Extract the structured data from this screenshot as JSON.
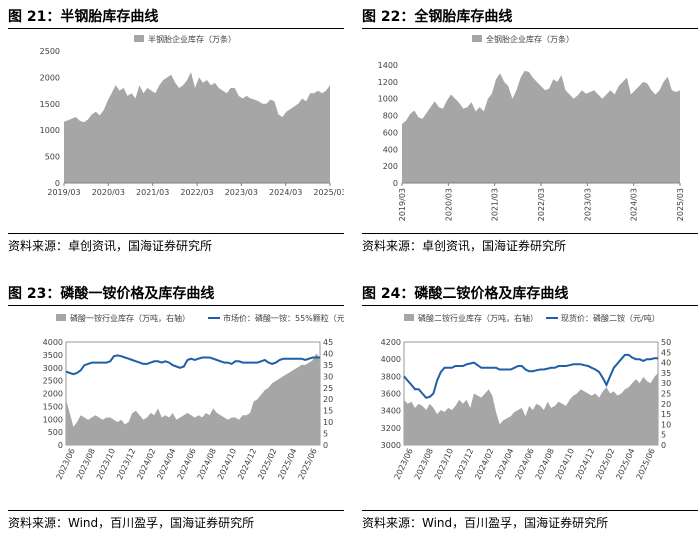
{
  "colors": {
    "area": "#a6a6a6",
    "line": "#1f5fa8",
    "axis": "#808080",
    "text": "#404040"
  },
  "panels": [
    {
      "title": "图 21：半钢胎库存曲线",
      "source": "资料来源：卓创资讯，国海证券研究所"
    },
    {
      "title": "图 22：全钢胎库存曲线",
      "source": "资料来源：卓创资讯，国海证券研究所"
    },
    {
      "title": "图 23：磷酸一铵价格及库存曲线",
      "source": "资料来源：Wind，百川盈孚，国海证券研究所"
    },
    {
      "title": "图 24：磷酸二铵价格及库存曲线",
      "source": "资料来源：Wind，百川盈孚，国海证券研究所"
    }
  ],
  "chart_data": [
    {
      "type": "area",
      "legend": [
        "半钢胎企业库存（万条）"
      ],
      "x_ticks": [
        "2019/03",
        "2020/03",
        "2021/03",
        "2022/03",
        "2023/03",
        "2024/03",
        "2025/03"
      ],
      "ylim": [
        0,
        2500
      ],
      "y_ticks": [
        0,
        500,
        1000,
        1500,
        2000,
        2500
      ],
      "series": [
        {
          "name": "半钢胎企业库存（万条）",
          "values": [
            1160,
            1190,
            1220,
            1250,
            1180,
            1150,
            1200,
            1300,
            1350,
            1280,
            1380,
            1560,
            1700,
            1850,
            1750,
            1800,
            1650,
            1700,
            1600,
            1850,
            1700,
            1800,
            1750,
            1700,
            1850,
            1950,
            2000,
            2050,
            1900,
            1800,
            1850,
            1950,
            2100,
            1800,
            2000,
            1900,
            1950,
            1850,
            1900,
            1800,
            1750,
            1700,
            1800,
            1800,
            1650,
            1600,
            1650,
            1600,
            1580,
            1550,
            1500,
            1500,
            1580,
            1550,
            1300,
            1250,
            1350,
            1400,
            1450,
            1500,
            1600,
            1550,
            1700,
            1700,
            1750,
            1700,
            1750,
            1850
          ]
        }
      ]
    },
    {
      "type": "area",
      "legend": [
        "全钢胎企业库存（万条）"
      ],
      "x_ticks": [
        "2019/03",
        "2020/03",
        "2021/03",
        "2022/03",
        "2023/03",
        "2024/03",
        "2025/03"
      ],
      "ylim": [
        0,
        1400
      ],
      "y_ticks": [
        0,
        200,
        400,
        600,
        800,
        1000,
        1200,
        1400
      ],
      "series": [
        {
          "name": "全钢胎企业库存（万条）",
          "values": [
            700,
            740,
            820,
            860,
            780,
            760,
            830,
            900,
            970,
            900,
            880,
            980,
            1050,
            1000,
            950,
            880,
            900,
            960,
            850,
            900,
            850,
            1000,
            1060,
            1230,
            1300,
            1200,
            1150,
            1000,
            1100,
            1250,
            1330,
            1320,
            1250,
            1200,
            1150,
            1100,
            1120,
            1230,
            1200,
            1280,
            1100,
            1050,
            1000,
            1040,
            1100,
            1060,
            1080,
            1100,
            1050,
            1000,
            1050,
            1100,
            1050,
            1150,
            1200,
            1250,
            1050,
            1100,
            1150,
            1200,
            1180,
            1100,
            1050,
            1100,
            1200,
            1260,
            1100,
            1080,
            1100
          ]
        }
      ]
    },
    {
      "type": "area+line",
      "legend": [
        "磷酸一铵行业库存（万吨，右轴）",
        "市场价：磷酸一铵：55%颗粒（元/吨）"
      ],
      "x_ticks": [
        "2023/06",
        "2023/08",
        "2023/10",
        "2023/12",
        "2024/02",
        "2024/04",
        "2024/06",
        "2024/08",
        "2024/10",
        "2024/12",
        "2025/02",
        "2025/04",
        "2025/06"
      ],
      "ylim_left": [
        0,
        4000
      ],
      "y_ticks_left": [
        0,
        500,
        1000,
        1500,
        2000,
        2500,
        3000,
        3500,
        4000
      ],
      "ylim_right": [
        0,
        45
      ],
      "y_ticks_right": [
        0,
        5,
        10,
        15,
        20,
        25,
        30,
        35,
        40,
        45
      ],
      "series": [
        {
          "name": "磷酸一铵行业库存（万吨，右轴）",
          "axis": "right",
          "kind": "area",
          "values": [
            20,
            14,
            8,
            10,
            13,
            12,
            11,
            12,
            13,
            12,
            11,
            12,
            12,
            11,
            10,
            11,
            9,
            10,
            14,
            15,
            13,
            11,
            12,
            14,
            13,
            16,
            12,
            13,
            12,
            14,
            11,
            12,
            13,
            14,
            13,
            12,
            13,
            12,
            14,
            13,
            16,
            14,
            13,
            12,
            11,
            12,
            12,
            11,
            13,
            13,
            14,
            19,
            20,
            22,
            24,
            25,
            27,
            28,
            29,
            30,
            31,
            32,
            33,
            34,
            35,
            35,
            36,
            37,
            40,
            38
          ]
        },
        {
          "name": "市场价：磷酸一铵：55%颗粒（元/吨）",
          "axis": "left",
          "kind": "line",
          "values": [
            2850,
            2800,
            2750,
            2800,
            2900,
            3100,
            3150,
            3200,
            3200,
            3200,
            3200,
            3200,
            3250,
            3450,
            3480,
            3450,
            3400,
            3350,
            3300,
            3250,
            3200,
            3150,
            3150,
            3200,
            3250,
            3250,
            3200,
            3250,
            3200,
            3100,
            3050,
            3000,
            3050,
            3300,
            3350,
            3300,
            3350,
            3400,
            3400,
            3400,
            3350,
            3300,
            3250,
            3200,
            3200,
            3150,
            3250,
            3250,
            3200,
            3200,
            3200,
            3200,
            3200,
            3250,
            3300,
            3200,
            3150,
            3200,
            3300,
            3350,
            3350,
            3350,
            3350,
            3350,
            3350,
            3300,
            3350,
            3400,
            3400,
            3400
          ]
        }
      ]
    },
    {
      "type": "area+line",
      "legend": [
        "磷酸二铵行业库存（万吨，右轴）",
        "现货价：磷酸二铵（元/吨）"
      ],
      "x_ticks": [
        "2023/06",
        "2023/08",
        "2023/10",
        "2023/12",
        "2024/02",
        "2024/04",
        "2024/06",
        "2024/08",
        "2024/10",
        "2024/12",
        "2025/02",
        "2025/04",
        "2025/06"
      ],
      "ylim_left": [
        3000,
        4200
      ],
      "y_ticks_left": [
        3000,
        3200,
        3400,
        3600,
        3800,
        4000,
        4200
      ],
      "ylim_right": [
        0,
        50
      ],
      "y_ticks_right": [
        0,
        5,
        10,
        15,
        20,
        25,
        30,
        35,
        40,
        45,
        50
      ],
      "series": [
        {
          "name": "磷酸二铵行业库存（万吨，右轴）",
          "axis": "right",
          "kind": "area",
          "values": [
            22,
            20,
            21,
            18,
            20,
            19,
            17,
            20,
            18,
            15,
            17,
            16,
            18,
            17,
            19,
            22,
            20,
            22,
            18,
            25,
            24,
            23,
            25,
            27,
            24,
            16,
            10,
            12,
            13,
            14,
            16,
            17,
            18,
            14,
            19,
            17,
            20,
            19,
            17,
            21,
            18,
            19,
            21,
            20,
            19,
            22,
            24,
            25,
            27,
            26,
            25,
            24,
            25,
            23,
            26,
            28,
            25,
            26,
            24,
            25,
            27,
            28,
            30,
            32,
            30,
            33,
            31,
            30,
            33,
            35
          ]
        },
        {
          "name": "现货价：磷酸二铵（元/吨）",
          "axis": "left",
          "kind": "line",
          "values": [
            3800,
            3750,
            3700,
            3650,
            3650,
            3600,
            3550,
            3560,
            3600,
            3750,
            3850,
            3900,
            3900,
            3900,
            3920,
            3920,
            3920,
            3940,
            3950,
            3960,
            3930,
            3900,
            3900,
            3900,
            3900,
            3900,
            3880,
            3880,
            3880,
            3880,
            3900,
            3920,
            3920,
            3880,
            3860,
            3860,
            3870,
            3880,
            3880,
            3890,
            3900,
            3900,
            3920,
            3920,
            3920,
            3930,
            3940,
            3940,
            3940,
            3930,
            3920,
            3900,
            3880,
            3850,
            3780,
            3700,
            3800,
            3900,
            3950,
            4000,
            4050,
            4050,
            4020,
            4000,
            4000,
            3980,
            4000,
            4000,
            4010,
            4010
          ]
        }
      ]
    }
  ]
}
